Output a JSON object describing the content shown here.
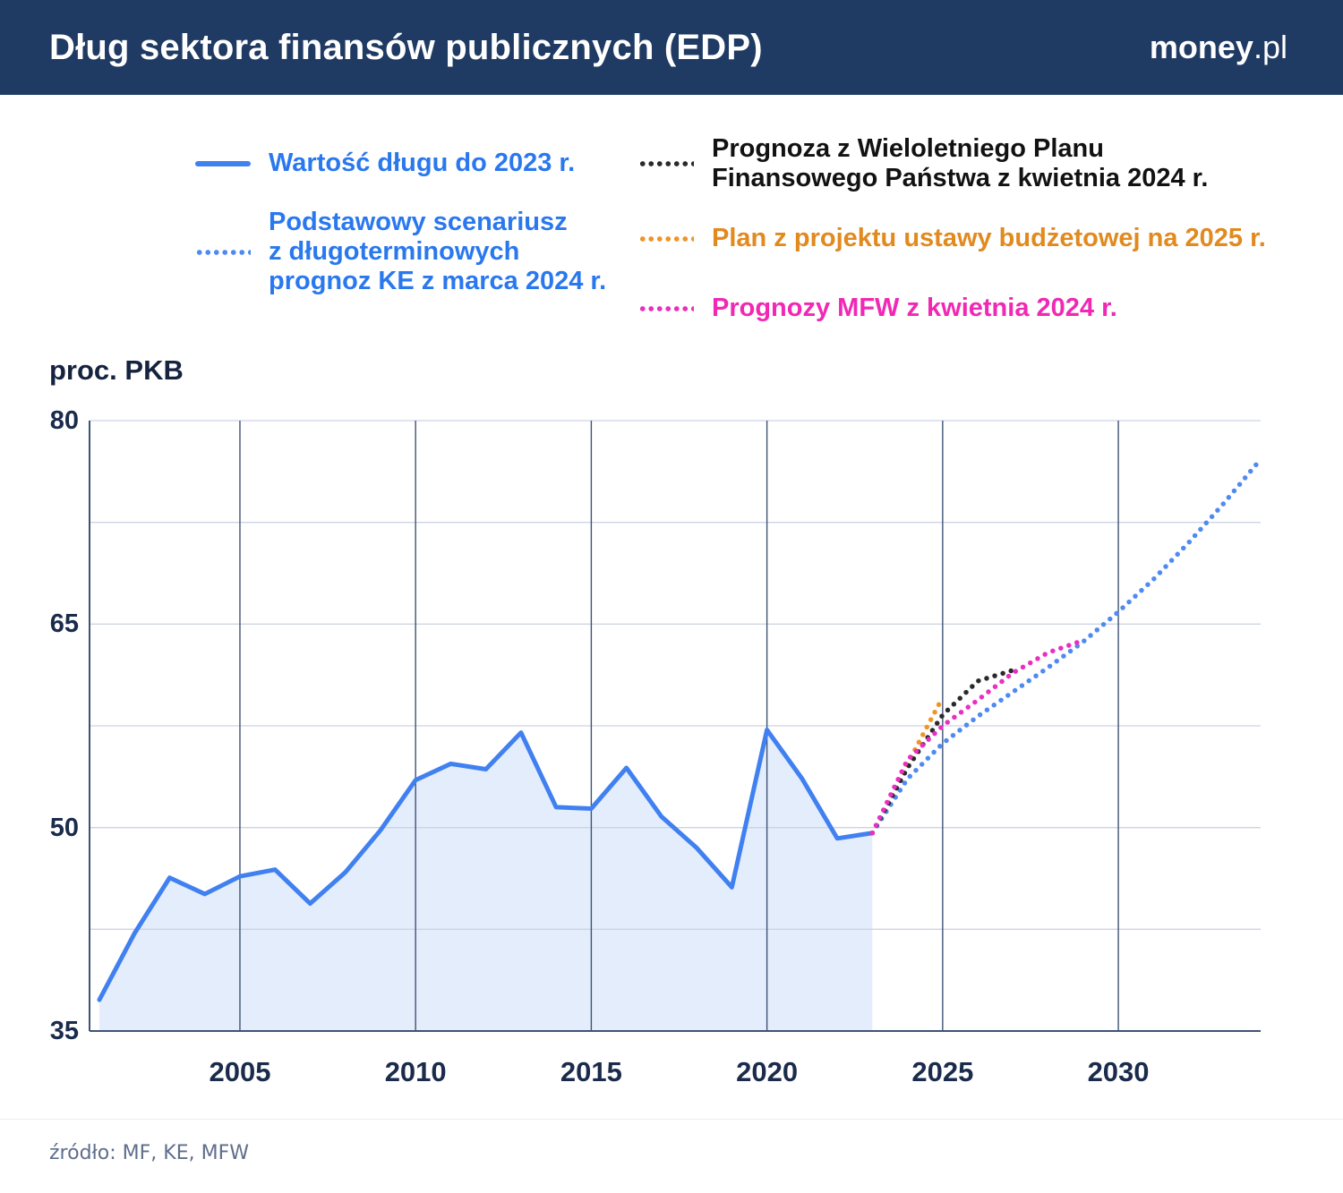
{
  "header": {
    "title": "Dług sektora finansów publicznych (EDP)",
    "logo": {
      "bold": "money",
      "rest": ".pl"
    }
  },
  "legend": {
    "items": [
      {
        "label": "Wartość długu do 2023 r.",
        "color": "#2a78ee",
        "line_color": "#4080f0",
        "style": "solid"
      },
      {
        "label": "Podstawowy scenariusz\nz długoterminowych\nprognoz KE z marca 2024 r.",
        "color": "#2a78ee",
        "line_color": "#4f8af2",
        "style": "dotted"
      },
      {
        "label": "Prognoza z Wieloletniego Planu\nFinansowego Państwa z kwietnia 2024 r.",
        "color": "#121212",
        "line_color": "#2a2a2a",
        "style": "dotted"
      },
      {
        "label": "Plan z projektu ustawy budżetowej na 2025 r.",
        "color": "#e18a1e",
        "line_color": "#f09426",
        "style": "dotted"
      },
      {
        "label": "Prognozy MFW z kwietnia 2024 r.",
        "color": "#f128b4",
        "line_color": "#ea2fc0",
        "style": "dotted"
      }
    ]
  },
  "footer": {
    "source": "źródło: MF, KE, MFW"
  },
  "chart_data": {
    "type": "line",
    "title": "Dług sektora finansów publicznych (EDP)",
    "ylabel": "proc. PKB",
    "ylim": [
      35,
      80
    ],
    "yticks": [
      35,
      50,
      65,
      80
    ],
    "ygrid_step": 7.5,
    "xticks": [
      2005,
      2010,
      2015,
      2020,
      2025,
      2030
    ],
    "xlim": [
      2000.72,
      2034.05
    ],
    "grid": true,
    "legend_position": "top",
    "series": [
      {
        "name": "Wartość długu do 2023 r.",
        "style": "solid",
        "color": "#4080f0",
        "fill": "#e4edfc",
        "points": [
          [
            2001,
            37.3
          ],
          [
            2002,
            42.2
          ],
          [
            2003,
            46.3
          ],
          [
            2004,
            45.1
          ],
          [
            2005,
            46.4
          ],
          [
            2006,
            46.9
          ],
          [
            2007,
            44.4
          ],
          [
            2008,
            46.7
          ],
          [
            2009,
            49.8
          ],
          [
            2010,
            53.5
          ],
          [
            2011,
            54.7
          ],
          [
            2012,
            54.3
          ],
          [
            2013,
            57.0
          ],
          [
            2014,
            51.5
          ],
          [
            2015,
            51.4
          ],
          [
            2016,
            54.4
          ],
          [
            2017,
            50.8
          ],
          [
            2018,
            48.5
          ],
          [
            2019,
            45.6
          ],
          [
            2020,
            57.2
          ],
          [
            2021,
            53.6
          ],
          [
            2022,
            49.2
          ],
          [
            2023,
            49.6
          ]
        ]
      },
      {
        "name": "Podstawowy scenariusz z długoterminowych prognoz KE z marca 2024 r.",
        "style": "dotted",
        "color": "#4f8af2",
        "points": [
          [
            2023,
            49.6
          ],
          [
            2024,
            53.6
          ],
          [
            2025,
            56.2
          ],
          [
            2026,
            58.2
          ],
          [
            2027,
            60.0
          ],
          [
            2028,
            61.8
          ],
          [
            2029,
            63.7
          ],
          [
            2030,
            65.9
          ],
          [
            2031,
            68.3
          ],
          [
            2032,
            71.0
          ],
          [
            2033,
            73.9
          ],
          [
            2034,
            77.0
          ]
        ]
      },
      {
        "name": "Plan z projektu ustawy budżetowej na 2025 r.",
        "style": "dotted",
        "color": "#f09426",
        "points": [
          [
            2023,
            49.6
          ],
          [
            2024,
            54.7
          ],
          [
            2025,
            59.6
          ]
        ]
      },
      {
        "name": "Prognoza z Wieloletniego Planu Finansowego Państwa z kwietnia 2024 r.",
        "style": "dotted",
        "color": "#2a2a2a",
        "points": [
          [
            2023,
            49.6
          ],
          [
            2024,
            54.4
          ],
          [
            2025,
            58.3
          ],
          [
            2026,
            60.8
          ],
          [
            2027,
            61.6
          ]
        ]
      },
      {
        "name": "Prognozy MFW z kwietnia 2024 r.",
        "style": "dotted",
        "color": "#ea2fc0",
        "points": [
          [
            2023,
            49.6
          ],
          [
            2024,
            55.0
          ],
          [
            2025,
            57.5
          ],
          [
            2026,
            59.4
          ],
          [
            2027,
            61.4
          ],
          [
            2028,
            62.9
          ],
          [
            2029,
            63.8
          ]
        ]
      }
    ]
  }
}
